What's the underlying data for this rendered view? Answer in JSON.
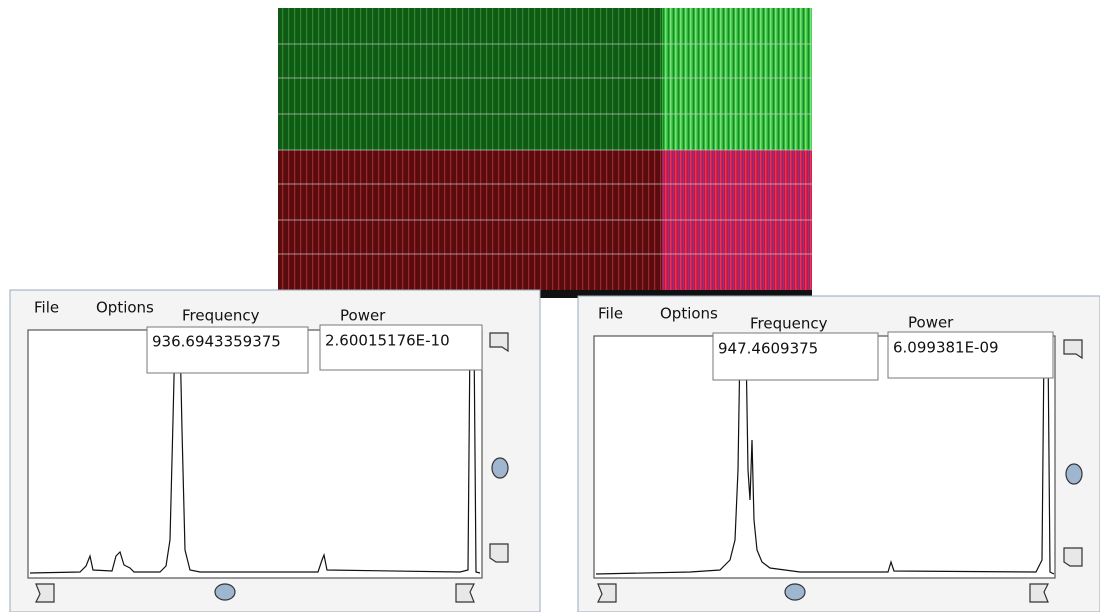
{
  "windows": [
    {
      "menu": [
        "File",
        "Options"
      ],
      "fields": [
        {
          "label": "Frequency",
          "value": "936.6943359375"
        },
        {
          "label": "Power",
          "value": "2.60015176E-10"
        }
      ]
    },
    {
      "menu": [
        "File",
        "Options"
      ],
      "fields": [
        {
          "label": "Frequency",
          "value": "947.4609375"
        },
        {
          "label": "Power",
          "value": "6.099381E-09"
        }
      ]
    }
  ]
}
